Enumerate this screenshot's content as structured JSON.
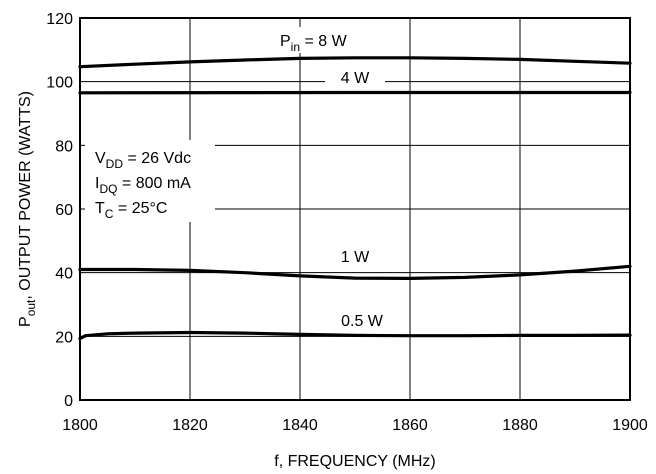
{
  "chart_data": {
    "type": "line",
    "xlabel": "f, FREQUENCY (MHz)",
    "ylabel_main": "P",
    "ylabel_sub": "out",
    "ylabel_rest": ", OUTPUT POWER (WATTS)",
    "xlim": [
      1800,
      1900
    ],
    "ylim": [
      0,
      120
    ],
    "xticks": [
      1800,
      1820,
      1840,
      1860,
      1880,
      1900
    ],
    "yticks": [
      0,
      20,
      40,
      60,
      80,
      100,
      120
    ],
    "grid": true,
    "series": [
      {
        "name": "Pin = 8 W",
        "x": [
          1800,
          1810,
          1820,
          1830,
          1840,
          1850,
          1860,
          1870,
          1880,
          1890,
          1900
        ],
        "values": [
          104.7,
          105.5,
          106.2,
          106.8,
          107.3,
          107.5,
          107.5,
          107.3,
          107.0,
          106.4,
          105.8
        ]
      },
      {
        "name": "4 W",
        "x": [
          1800,
          1850,
          1900
        ],
        "values": [
          96.5,
          96.6,
          96.6
        ]
      },
      {
        "name": "1 W",
        "x": [
          1800,
          1810,
          1820,
          1830,
          1840,
          1850,
          1860,
          1870,
          1880,
          1890,
          1900
        ],
        "values": [
          41.0,
          41.0,
          40.7,
          40.0,
          39.0,
          38.3,
          38.2,
          38.5,
          39.3,
          40.5,
          42.0
        ]
      },
      {
        "name": "0.5 W",
        "x": [
          1800,
          1801,
          1805,
          1810,
          1820,
          1830,
          1840,
          1850,
          1860,
          1870,
          1880,
          1890,
          1900
        ],
        "values": [
          19.3,
          20.2,
          20.8,
          21.0,
          21.2,
          21.0,
          20.6,
          20.3,
          20.2,
          20.2,
          20.3,
          20.3,
          20.4
        ]
      }
    ],
    "annotations": {
      "pin": {
        "main": "P",
        "sub": "in",
        "rest": " = 8 W"
      },
      "w4": "4 W",
      "w1": "1 W",
      "w05": "0.5 W",
      "vdd": {
        "main": "V",
        "sub": "DD",
        "rest": " = 26 Vdc"
      },
      "idq": {
        "main": "I",
        "sub": "DQ",
        "rest": " = 800 mA"
      },
      "tc": {
        "main": "T",
        "sub": "C",
        "rest": " = 25°C"
      }
    }
  }
}
